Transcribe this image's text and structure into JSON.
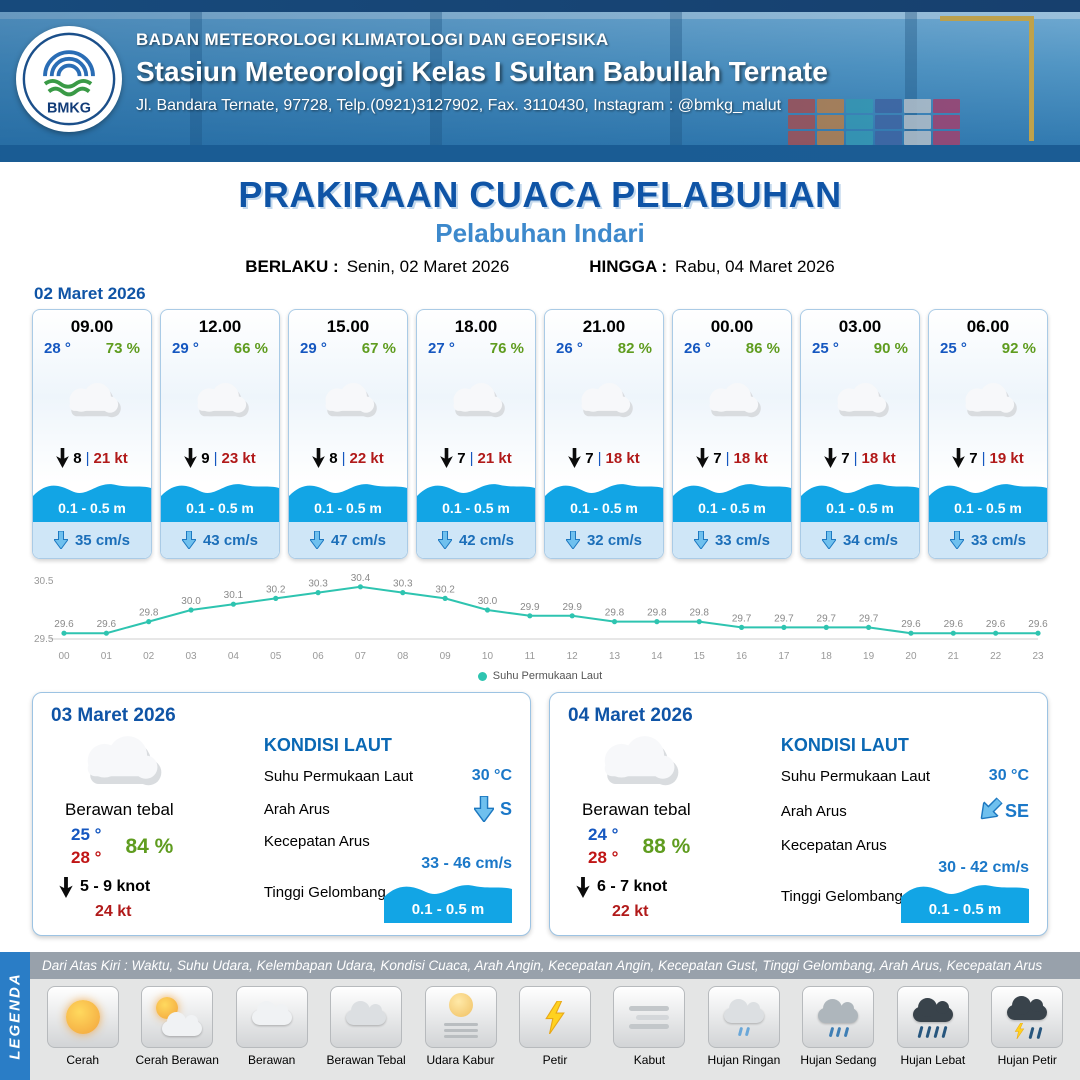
{
  "header": {
    "agency": "BADAN METEOROLOGI KLIMATOLOGI DAN GEOFISIKA",
    "station": "Stasiun Meteorologi Kelas I Sultan Babullah Ternate",
    "address": "Jl. Bandara Ternate, 97728, Telp.(0921)3127902, Fax. 3110430, Instagram : @bmkg_malut",
    "logo_text": "BMKG"
  },
  "title": {
    "main": "PRAKIRAAN CUACA PELABUHAN",
    "subtitle": "Pelabuhan Indari",
    "valid_from_label": "BERLAKU :",
    "valid_from": "Senin, 02 Maret 2026",
    "valid_to_label": "HINGGA :",
    "valid_to": "Rabu, 04 Maret 2026"
  },
  "hourly_section": {
    "date": "02 Maret 2026",
    "cards": [
      {
        "time": "09.00",
        "temp": "28 °",
        "humidity": "73 %",
        "wind_speed": "8",
        "separator": "|",
        "gust": "21 kt",
        "wave_height": "0.1 - 0.5 m",
        "current_speed": "35 cm/s"
      },
      {
        "time": "12.00",
        "temp": "29 °",
        "humidity": "66 %",
        "wind_speed": "9",
        "separator": "|",
        "gust": "23 kt",
        "wave_height": "0.1 - 0.5 m",
        "current_speed": "43 cm/s"
      },
      {
        "time": "15.00",
        "temp": "29 °",
        "humidity": "67 %",
        "wind_speed": "8",
        "separator": "|",
        "gust": "22 kt",
        "wave_height": "0.1 - 0.5 m",
        "current_speed": "47 cm/s"
      },
      {
        "time": "18.00",
        "temp": "27 °",
        "humidity": "76 %",
        "wind_speed": "7",
        "separator": "|",
        "gust": "21 kt",
        "wave_height": "0.1 - 0.5 m",
        "current_speed": "42 cm/s"
      },
      {
        "time": "21.00",
        "temp": "26 °",
        "humidity": "82 %",
        "wind_speed": "7",
        "separator": "|",
        "gust": "18 kt",
        "wave_height": "0.1 - 0.5 m",
        "current_speed": "32 cm/s"
      },
      {
        "time": "00.00",
        "temp": "26 °",
        "humidity": "86 %",
        "wind_speed": "7",
        "separator": "|",
        "gust": "18 kt",
        "wave_height": "0.1 - 0.5 m",
        "current_speed": "33 cm/s"
      },
      {
        "time": "03.00",
        "temp": "25 °",
        "humidity": "90 %",
        "wind_speed": "7",
        "separator": "|",
        "gust": "18 kt",
        "wave_height": "0.1 - 0.5 m",
        "current_speed": "34 cm/s"
      },
      {
        "time": "06.00",
        "temp": "25 °",
        "humidity": "92 %",
        "wind_speed": "7",
        "separator": "|",
        "gust": "19 kt",
        "wave_height": "0.1 - 0.5 m",
        "current_speed": "33 cm/s"
      }
    ]
  },
  "chart_data": {
    "type": "line",
    "series_name": "Suhu Permukaan Laut",
    "x": [
      "00",
      "01",
      "02",
      "03",
      "04",
      "05",
      "06",
      "07",
      "08",
      "09",
      "10",
      "11",
      "12",
      "13",
      "14",
      "15",
      "16",
      "17",
      "18",
      "19",
      "20",
      "21",
      "22",
      "23"
    ],
    "values": [
      29.6,
      29.6,
      29.8,
      30.0,
      30.1,
      30.2,
      30.3,
      30.4,
      30.3,
      30.2,
      30.0,
      29.9,
      29.9,
      29.8,
      29.8,
      29.8,
      29.7,
      29.7,
      29.7,
      29.7,
      29.6,
      29.6,
      29.6,
      29.6
    ],
    "ylim": [
      29.5,
      30.5
    ],
    "y_ticks": [
      "29.5",
      "30.5"
    ],
    "line_color": "#2ec4b0",
    "grid": false,
    "legend_position": "bottom"
  },
  "daily_cards": [
    {
      "date": "03 Maret 2026",
      "condition": "Berawan tebal",
      "temp_min": "25 °",
      "temp_max": "28 °",
      "humidity": "84 %",
      "wind": "5 - 9 knot",
      "gust": "24 kt",
      "sea_title": "KONDISI LAUT",
      "sst_label": "Suhu Permukaan Laut",
      "sst_value": "30 °C",
      "current_dir_label": "Arah Arus",
      "current_dir": "S",
      "current_speed_label": "Kecepatan Arus",
      "current_speed": "33 - 46 cm/s",
      "wave_label": "Tinggi Gelombang",
      "wave_height": "0.1 - 0.5 m"
    },
    {
      "date": "04 Maret 2026",
      "condition": "Berawan tebal",
      "temp_min": "24 °",
      "temp_max": "28 °",
      "humidity": "88 %",
      "wind": "6 - 7 knot",
      "gust": "22 kt",
      "sea_title": "KONDISI LAUT",
      "sst_label": "Suhu Permukaan Laut",
      "sst_value": "30 °C",
      "current_dir_label": "Arah Arus",
      "current_dir": "SE",
      "current_speed_label": "Kecepatan Arus",
      "current_speed": "30 - 42 cm/s",
      "wave_label": "Tinggi Gelombang",
      "wave_height": "0.1 - 0.5 m"
    }
  ],
  "legend": {
    "side_label": "LEGENDA",
    "description": "Dari Atas Kiri : Waktu, Suhu Udara, Kelembapan Udara, Kondisi Cuaca, Arah Angin, Kecepatan Angin, Kecepatan Gust, Tinggi Gelombang, Arah Arus, Kecepatan Arus",
    "items": [
      {
        "label": "Cerah"
      },
      {
        "label": "Cerah Berawan"
      },
      {
        "label": "Berawan"
      },
      {
        "label": "Berawan Tebal"
      },
      {
        "label": "Udara Kabur"
      },
      {
        "label": "Petir"
      },
      {
        "label": "Kabut"
      },
      {
        "label": "Hujan Ringan"
      },
      {
        "label": "Hujan Sedang"
      },
      {
        "label": "Hujan Lebat"
      },
      {
        "label": "Hujan Petir"
      }
    ]
  },
  "colors": {
    "primary_blue": "#0f54a6",
    "subtitle_blue": "#3d89cc",
    "temp_blue": "#1557c0",
    "humidity_green": "#5f9c1f",
    "gust_red": "#b11a1a",
    "wave_blue": "#12a5e5",
    "current_strip_blue": "#cfe6f7",
    "chart_line": "#2ec4b0"
  }
}
